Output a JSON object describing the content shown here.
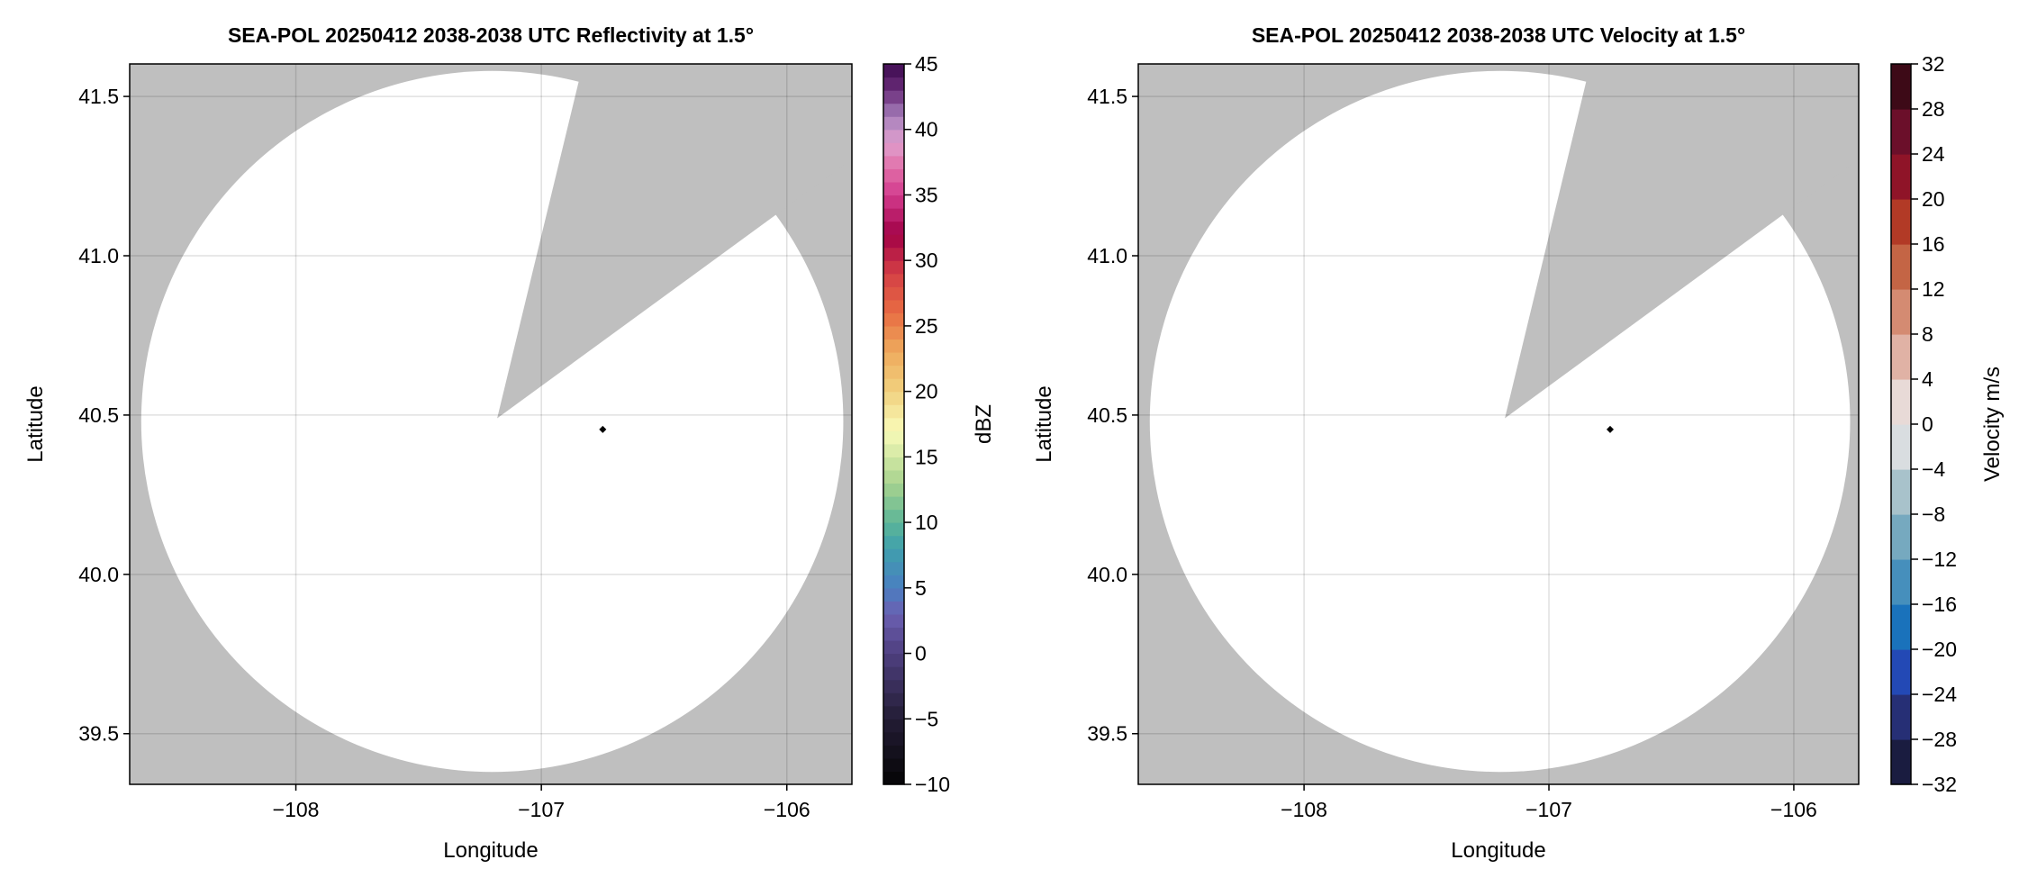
{
  "chart_data": [
    {
      "type": "heatmap",
      "title": "SEA-POL 20250412 2038-2038 UTC Reflectivity at 1.5°",
      "xlabel": "Longitude",
      "ylabel": "Latitude",
      "xlim": [
        -108.677,
        -105.735
      ],
      "ylim": [
        39.341,
        41.602
      ],
      "xticks": [
        -108,
        -107,
        -106
      ],
      "xtick_labels": [
        "−108",
        "−107",
        "−106"
      ],
      "yticks": [
        39.5,
        40.0,
        40.5,
        41.0,
        41.5
      ],
      "ytick_labels": [
        "39.5",
        "40.0",
        "40.5",
        "41.0",
        "41.5"
      ],
      "grid": true,
      "background_color": "#bfbfbf",
      "no_data_note_color": "#ffffff",
      "coverage": {
        "center": [
          -107.2,
          40.48
        ],
        "radius_deg_lon": 1.43,
        "radius_deg_lat": 1.1
      },
      "blocked_sector": {
        "apex": [
          -107.18,
          40.49
        ],
        "edge1": [
          -106.85,
          41.54
        ],
        "edge2": [
          -106.06,
          41.12
        ]
      },
      "marker": {
        "lon": -106.75,
        "lat": 40.455,
        "color": "#000000"
      },
      "colorbar": {
        "label": "dBZ",
        "range": [
          -10,
          45
        ],
        "step": 1,
        "ticks": [
          -10,
          -5,
          0,
          5,
          10,
          15,
          20,
          25,
          30,
          35,
          40,
          45
        ],
        "tick_labels": [
          "−10",
          "−5",
          "0",
          "5",
          "10",
          "15",
          "20",
          "25",
          "30",
          "35",
          "40",
          "45"
        ],
        "anchors": [
          [
            -10,
            "#050505"
          ],
          [
            -5,
            "#231c35"
          ],
          [
            0,
            "#4e3f7f"
          ],
          [
            3,
            "#6b5fb1"
          ],
          [
            5,
            "#4a7fc1"
          ],
          [
            8,
            "#3f9fad"
          ],
          [
            10,
            "#5cb597"
          ],
          [
            13,
            "#a8d38f"
          ],
          [
            17,
            "#f9fbb8"
          ],
          [
            20,
            "#f1d17f"
          ],
          [
            23,
            "#eeab5d"
          ],
          [
            26,
            "#e86d42"
          ],
          [
            29,
            "#d43f45"
          ],
          [
            32,
            "#a10146"
          ],
          [
            35,
            "#d23a8d"
          ],
          [
            37,
            "#e16ea7"
          ],
          [
            39,
            "#e09fcd"
          ],
          [
            41,
            "#a680bb"
          ],
          [
            43,
            "#6a2c7a"
          ],
          [
            45,
            "#3c0a4f"
          ]
        ]
      }
    },
    {
      "type": "heatmap",
      "title": "SEA-POL 20250412 2038-2038 UTC Velocity at 1.5°",
      "xlabel": "Longitude",
      "ylabel": "Latitude",
      "xlim": [
        -108.677,
        -105.735
      ],
      "ylim": [
        39.341,
        41.602
      ],
      "xticks": [
        -108,
        -107,
        -106
      ],
      "xtick_labels": [
        "−108",
        "−107",
        "−106"
      ],
      "yticks": [
        39.5,
        40.0,
        40.5,
        41.0,
        41.5
      ],
      "ytick_labels": [
        "39.5",
        "40.0",
        "40.5",
        "41.0",
        "41.5"
      ],
      "grid": true,
      "background_color": "#bfbfbf",
      "coverage": {
        "center": [
          -107.2,
          40.48
        ],
        "radius_deg_lon": 1.43,
        "radius_deg_lat": 1.1
      },
      "blocked_sector": {
        "apex": [
          -107.18,
          40.49
        ],
        "edge1": [
          -106.85,
          41.54
        ],
        "edge2": [
          -106.06,
          41.12
        ]
      },
      "marker": {
        "lon": -106.75,
        "lat": 40.455,
        "color": "#000000"
      },
      "colorbar": {
        "label": "Velocity m/s",
        "range": [
          -32,
          32
        ],
        "step": 4,
        "ticks": [
          -32,
          -28,
          -24,
          -20,
          -16,
          -12,
          -8,
          -4,
          0,
          4,
          8,
          12,
          16,
          20,
          24,
          28,
          32
        ],
        "tick_labels": [
          "−32",
          "−28",
          "−24",
          "−20",
          "−16",
          "−12",
          "−8",
          "−4",
          "0",
          "4",
          "8",
          "12",
          "16",
          "20",
          "24",
          "28",
          "32"
        ],
        "colors": [
          "#1a1c40",
          "#262f75",
          "#2349b5",
          "#1a72bb",
          "#468fbc",
          "#76a9bf",
          "#a8c2cb",
          "#d9dde0",
          "#e8dad7",
          "#e0b2a5",
          "#d48b72",
          "#c46545",
          "#b23a26",
          "#8f1428",
          "#6b0f2a",
          "#3d0a17"
        ]
      }
    }
  ]
}
